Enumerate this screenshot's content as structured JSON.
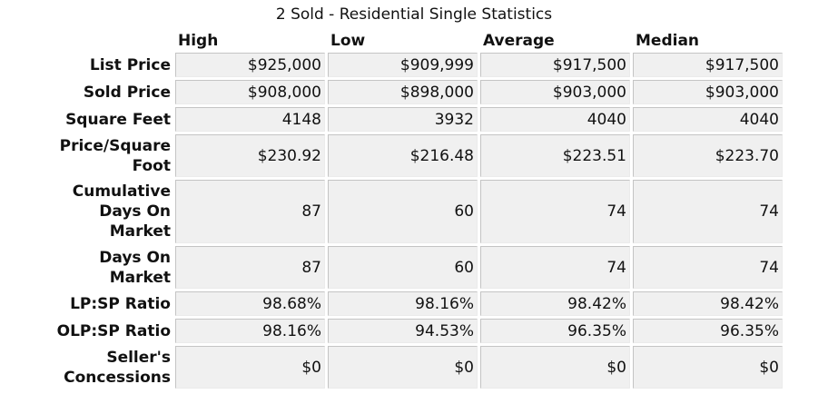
{
  "title": "2 Sold - Residential Single Statistics",
  "columns": [
    "High",
    "Low",
    "Average",
    "Median"
  ],
  "rows": [
    {
      "label": "List Price",
      "values": [
        "$925,000",
        "$909,999",
        "$917,500",
        "$917,500"
      ]
    },
    {
      "label": "Sold Price",
      "values": [
        "$908,000",
        "$898,000",
        "$903,000",
        "$903,000"
      ]
    },
    {
      "label": "Square Feet",
      "values": [
        "4148",
        "3932",
        "4040",
        "4040"
      ]
    },
    {
      "label": "Price/Square Foot",
      "values": [
        "$230.92",
        "$216.48",
        "$223.51",
        "$223.70"
      ]
    },
    {
      "label": "Cumulative Days On Market",
      "values": [
        "87",
        "60",
        "74",
        "74"
      ]
    },
    {
      "label": "Days On Market",
      "values": [
        "87",
        "60",
        "74",
        "74"
      ]
    },
    {
      "label": "LP:SP Ratio",
      "values": [
        "98.68%",
        "98.16%",
        "98.42%",
        "98.42%"
      ]
    },
    {
      "label": "OLP:SP Ratio",
      "values": [
        "98.16%",
        "94.53%",
        "96.35%",
        "96.35%"
      ]
    },
    {
      "label": "Seller's Concessions",
      "values": [
        "$0",
        "$0",
        "$0",
        "$0"
      ]
    }
  ]
}
